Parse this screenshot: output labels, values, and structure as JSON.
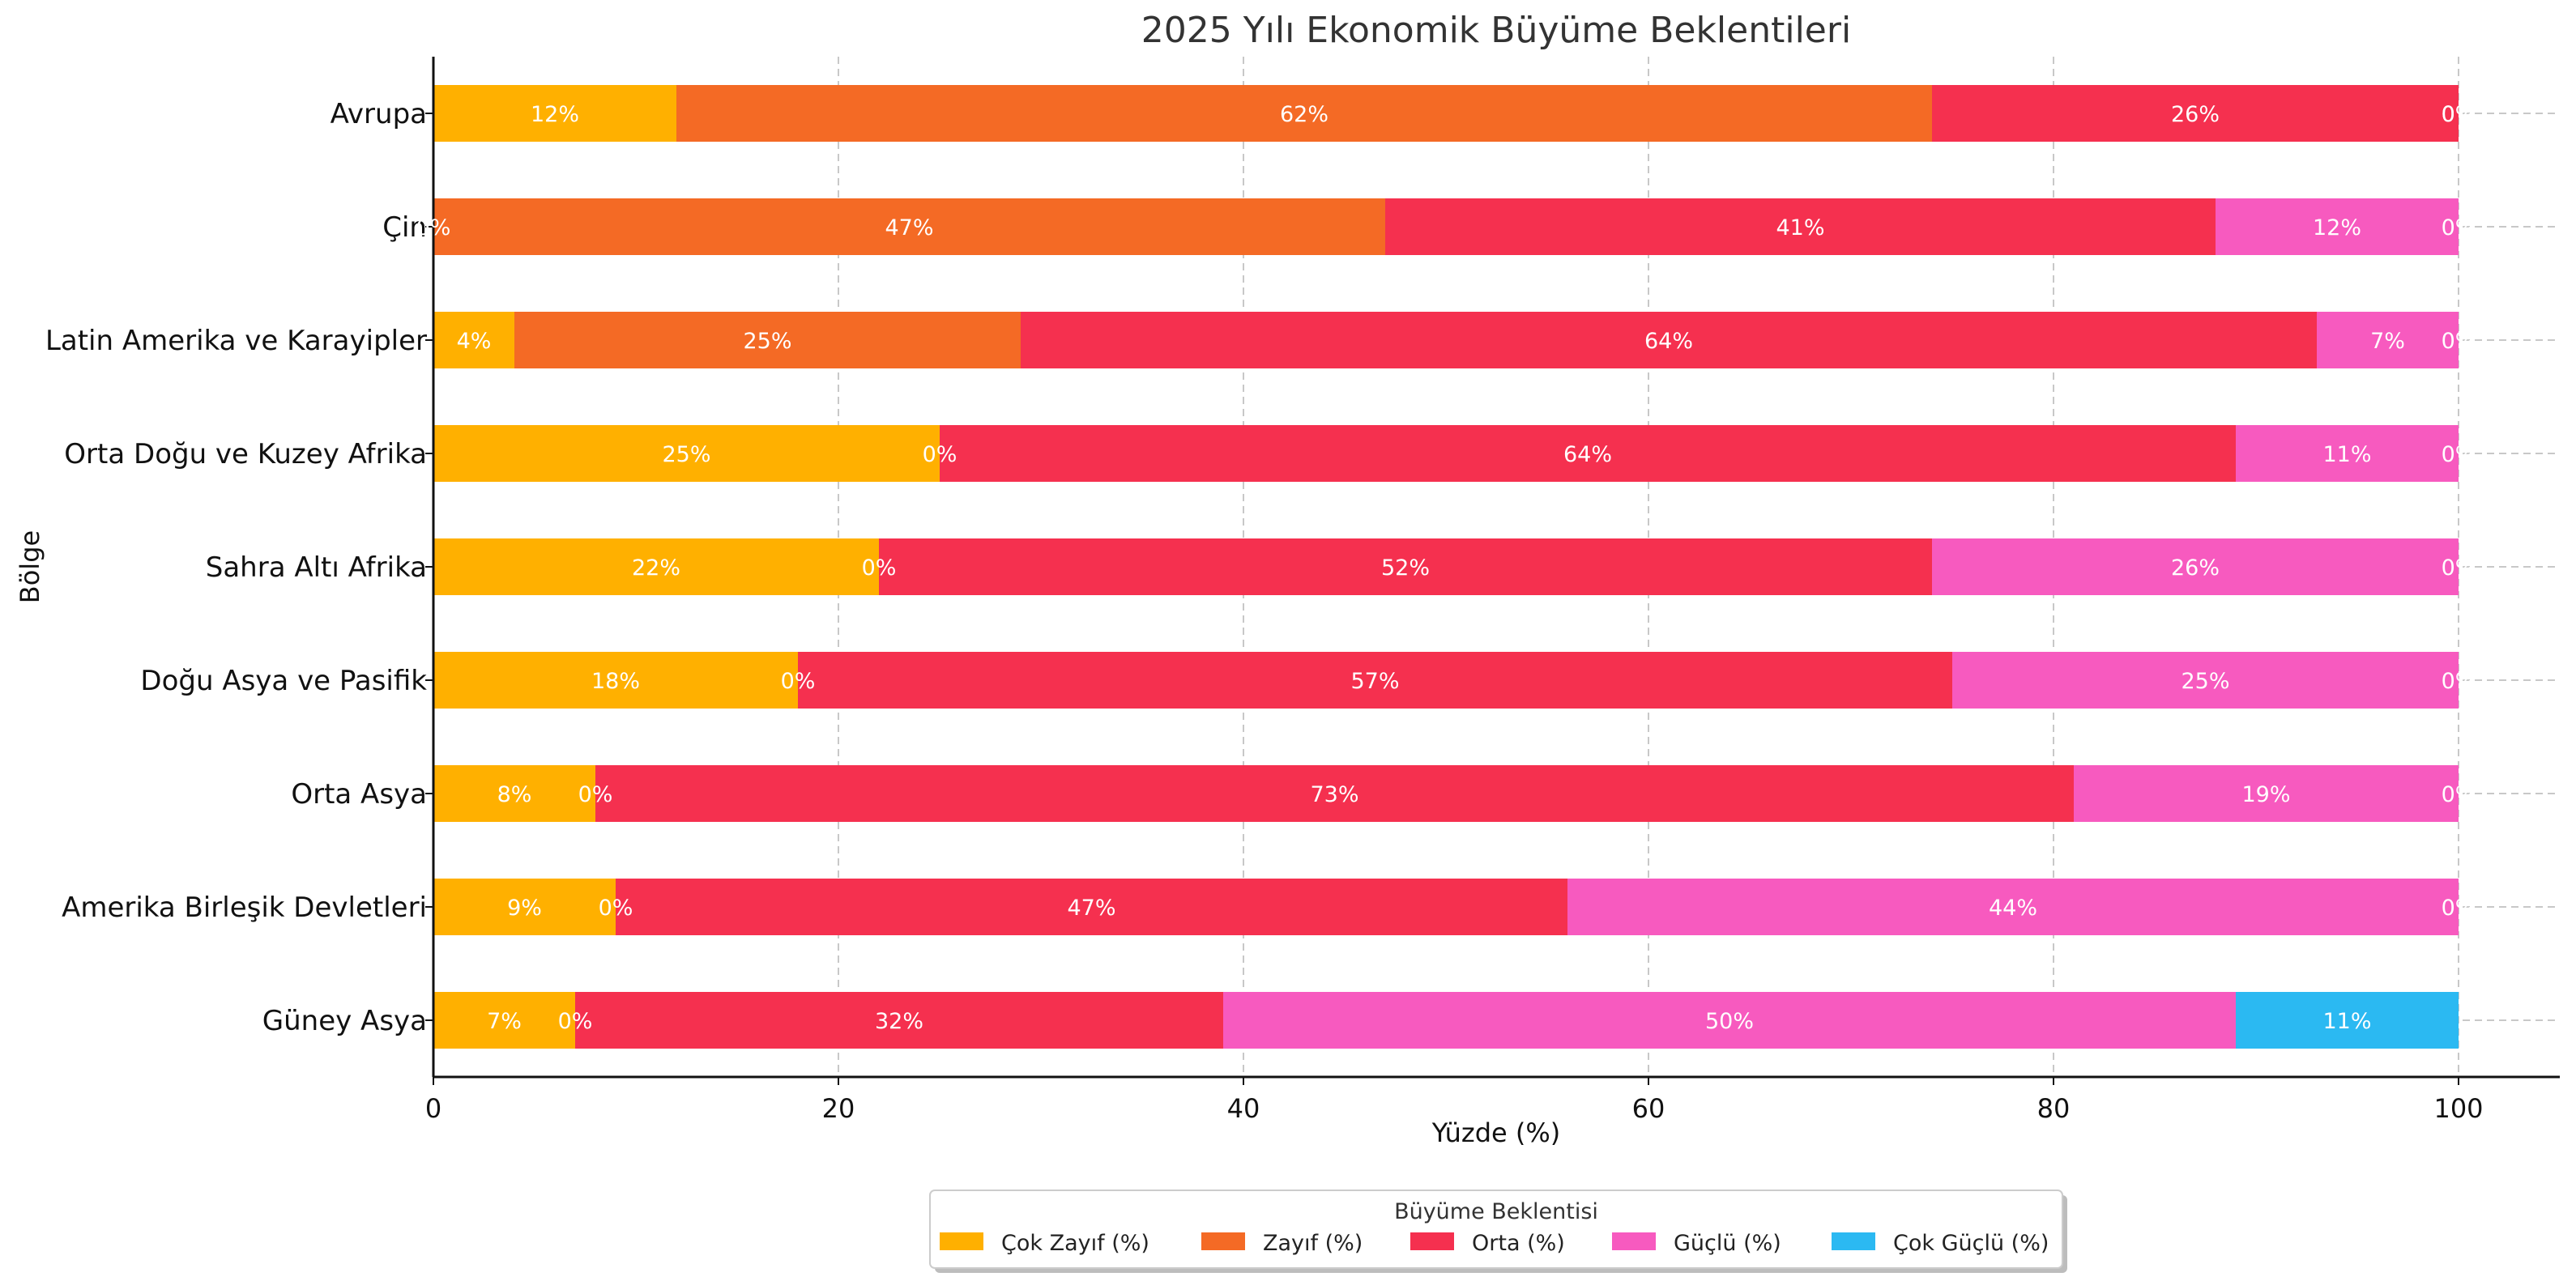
{
  "chart_data": {
    "type": "bar",
    "orientation": "horizontal",
    "stacked": true,
    "title": "2025 Yılı Ekonomik Büyüme Beklentileri",
    "xlabel": "Yüzde (%)",
    "ylabel": "Bölge",
    "xlim": [
      0,
      105
    ],
    "xticks": [
      0,
      20,
      40,
      60,
      80,
      100
    ],
    "grid": true,
    "legend_title": "Büyüme Beklentisi",
    "legend_position": "bottom-center",
    "categories": [
      "Avrupa",
      "Çin",
      "Latin Amerika ve Karayipler",
      "Orta Doğu ve Kuzey Afrika",
      "Sahra Altı Afrika",
      "Doğu Asya ve Pasifik",
      "Orta Asya",
      "Amerika Birleşik Devletleri",
      "Güney Asya"
    ],
    "series": [
      {
        "name": "Çok Zayıf (%)",
        "color": "#FFB000",
        "values": [
          12,
          0,
          4,
          25,
          22,
          18,
          8,
          9,
          7
        ]
      },
      {
        "name": "Zayıf (%)",
        "color": "#F46A25",
        "values": [
          62,
          47,
          25,
          0,
          0,
          0,
          0,
          0,
          0
        ]
      },
      {
        "name": "Orta (%)",
        "color": "#F5304F",
        "values": [
          26,
          41,
          64,
          64,
          52,
          57,
          73,
          47,
          32
        ]
      },
      {
        "name": "Güçlü (%)",
        "color": "#F75ABF",
        "values": [
          0,
          12,
          7,
          11,
          26,
          25,
          19,
          44,
          50
        ]
      },
      {
        "name": "Çok Güçlü (%)",
        "color": "#2BB9F2",
        "values": [
          0,
          0,
          0,
          0,
          0,
          0,
          0,
          0,
          11
        ]
      }
    ]
  }
}
